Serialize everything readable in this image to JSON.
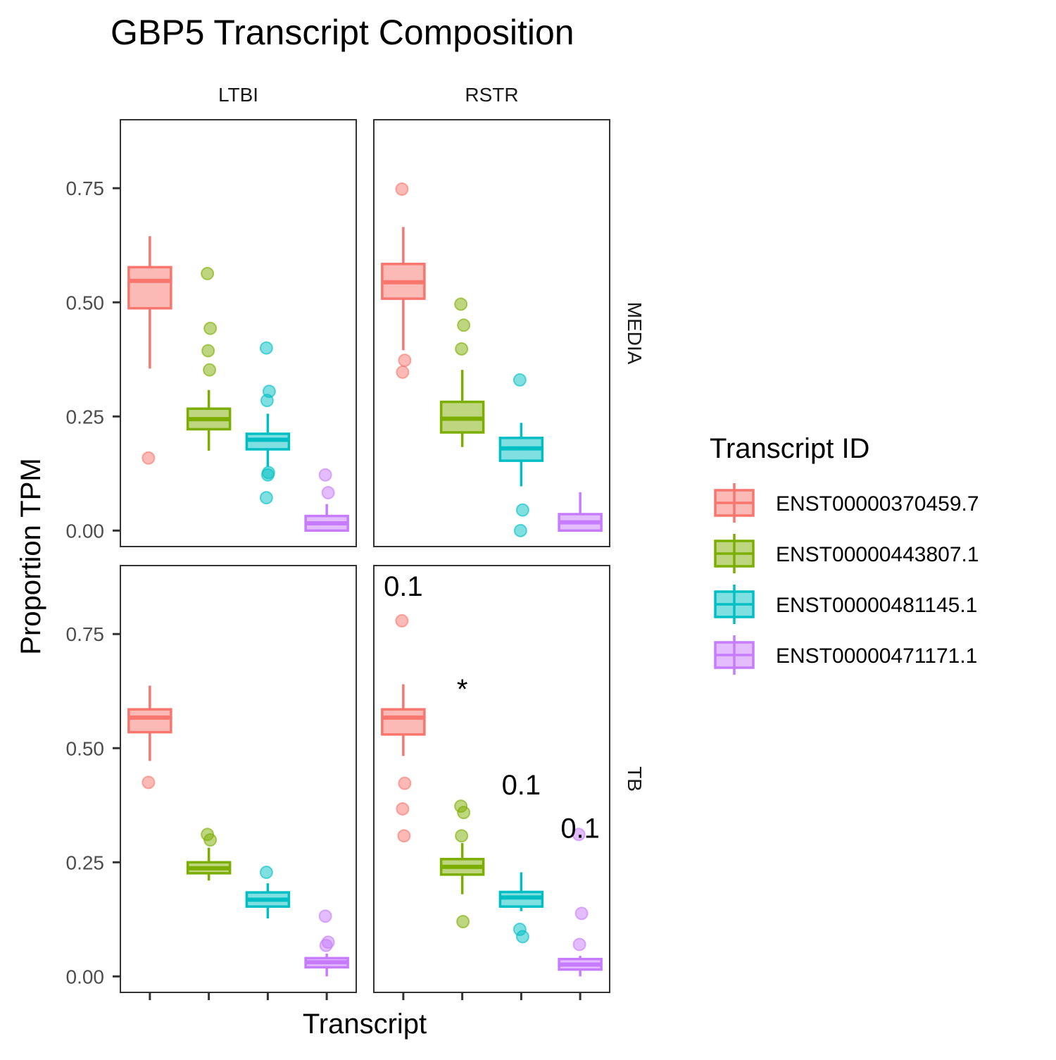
{
  "chart_data": {
    "type": "box",
    "title": "GBP5 Transcript Composition",
    "xlabel": "Transcript",
    "ylabel": "Proportion TPM",
    "ylim": [
      -0.035,
      0.9
    ],
    "yticks": [
      0.0,
      0.25,
      0.5,
      0.75
    ],
    "ytick_labels": [
      "0.00",
      "0.25",
      "0.50",
      "0.75"
    ],
    "columns": [
      "LTBI",
      "RSTR"
    ],
    "rows": [
      "MEDIA",
      "TB"
    ],
    "legend": {
      "title": "Transcript ID",
      "position": "right",
      "entries": [
        {
          "label": "ENST00000370459.7",
          "color": "#F8766D"
        },
        {
          "label": "ENST00000443807.1",
          "color": "#7CAE00"
        },
        {
          "label": "ENST00000481145.1",
          "color": "#00BFC4"
        },
        {
          "label": "ENST00000471171.1",
          "color": "#C77CFF"
        }
      ]
    },
    "panels": [
      {
        "col": "LTBI",
        "row": "MEDIA",
        "annotations": [],
        "boxes": [
          {
            "q1": 0.487,
            "median": 0.547,
            "q3": 0.577,
            "lo": 0.355,
            "hi": 0.645,
            "outliers": [
              0.159
            ]
          },
          {
            "q1": 0.222,
            "median": 0.244,
            "q3": 0.267,
            "lo": 0.175,
            "hi": 0.308,
            "outliers": [
              0.563,
              0.443,
              0.394,
              0.352
            ]
          },
          {
            "q1": 0.178,
            "median": 0.199,
            "q3": 0.212,
            "lo": 0.14,
            "hi": 0.256,
            "outliers": [
              0.4,
              0.305,
              0.285,
              0.127,
              0.122,
              0.072
            ]
          },
          {
            "q1": 0.0,
            "median": 0.016,
            "q3": 0.032,
            "lo": 0.0,
            "hi": 0.058,
            "outliers": [
              0.122,
              0.083
            ]
          }
        ]
      },
      {
        "col": "RSTR",
        "row": "MEDIA",
        "annotations": [],
        "boxes": [
          {
            "q1": 0.508,
            "median": 0.544,
            "q3": 0.584,
            "lo": 0.395,
            "hi": 0.665,
            "outliers": [
              0.748,
              0.373,
              0.347
            ]
          },
          {
            "q1": 0.215,
            "median": 0.245,
            "q3": 0.282,
            "lo": 0.183,
            "hi": 0.352,
            "outliers": [
              0.496,
              0.45,
              0.398
            ]
          },
          {
            "q1": 0.153,
            "median": 0.18,
            "q3": 0.203,
            "lo": 0.097,
            "hi": 0.236,
            "outliers": [
              0.33,
              0.045,
              0.0
            ]
          },
          {
            "q1": 0.0,
            "median": 0.018,
            "q3": 0.036,
            "lo": 0.0,
            "hi": 0.084,
            "outliers": []
          }
        ]
      },
      {
        "col": "LTBI",
        "row": "TB",
        "annotations": [],
        "boxes": [
          {
            "q1": 0.535,
            "median": 0.567,
            "q3": 0.585,
            "lo": 0.472,
            "hi": 0.637,
            "outliers": [
              0.425
            ]
          },
          {
            "q1": 0.226,
            "median": 0.237,
            "q3": 0.25,
            "lo": 0.21,
            "hi": 0.282,
            "outliers": [
              0.311,
              0.299
            ]
          },
          {
            "q1": 0.153,
            "median": 0.168,
            "q3": 0.184,
            "lo": 0.127,
            "hi": 0.204,
            "outliers": [
              0.228
            ]
          },
          {
            "q1": 0.02,
            "median": 0.031,
            "q3": 0.04,
            "lo": 0.0,
            "hi": 0.05,
            "outliers": [
              0.132,
              0.075,
              0.068
            ]
          }
        ]
      },
      {
        "col": "RSTR",
        "row": "TB",
        "annotations": [
          {
            "text": "0.1",
            "series": 0,
            "y": 0.855
          },
          {
            "text": "*",
            "series": 1,
            "y": 0.63
          },
          {
            "text": "0.1",
            "series": 2,
            "y": 0.42
          },
          {
            "text": "0.1",
            "series": 3,
            "y": 0.325
          }
        ],
        "boxes": [
          {
            "q1": 0.53,
            "median": 0.567,
            "q3": 0.585,
            "lo": 0.483,
            "hi": 0.64,
            "outliers": [
              0.779,
              0.423,
              0.367,
              0.308
            ]
          },
          {
            "q1": 0.223,
            "median": 0.24,
            "q3": 0.257,
            "lo": 0.18,
            "hi": 0.292,
            "outliers": [
              0.373,
              0.359,
              0.308,
              0.12
            ]
          },
          {
            "q1": 0.153,
            "median": 0.173,
            "q3": 0.185,
            "lo": 0.143,
            "hi": 0.228,
            "outliers": [
              0.103,
              0.087
            ]
          },
          {
            "q1": 0.015,
            "median": 0.026,
            "q3": 0.038,
            "lo": 0.0,
            "hi": 0.045,
            "outliers": [
              0.311,
              0.138,
              0.07
            ]
          }
        ]
      }
    ]
  }
}
